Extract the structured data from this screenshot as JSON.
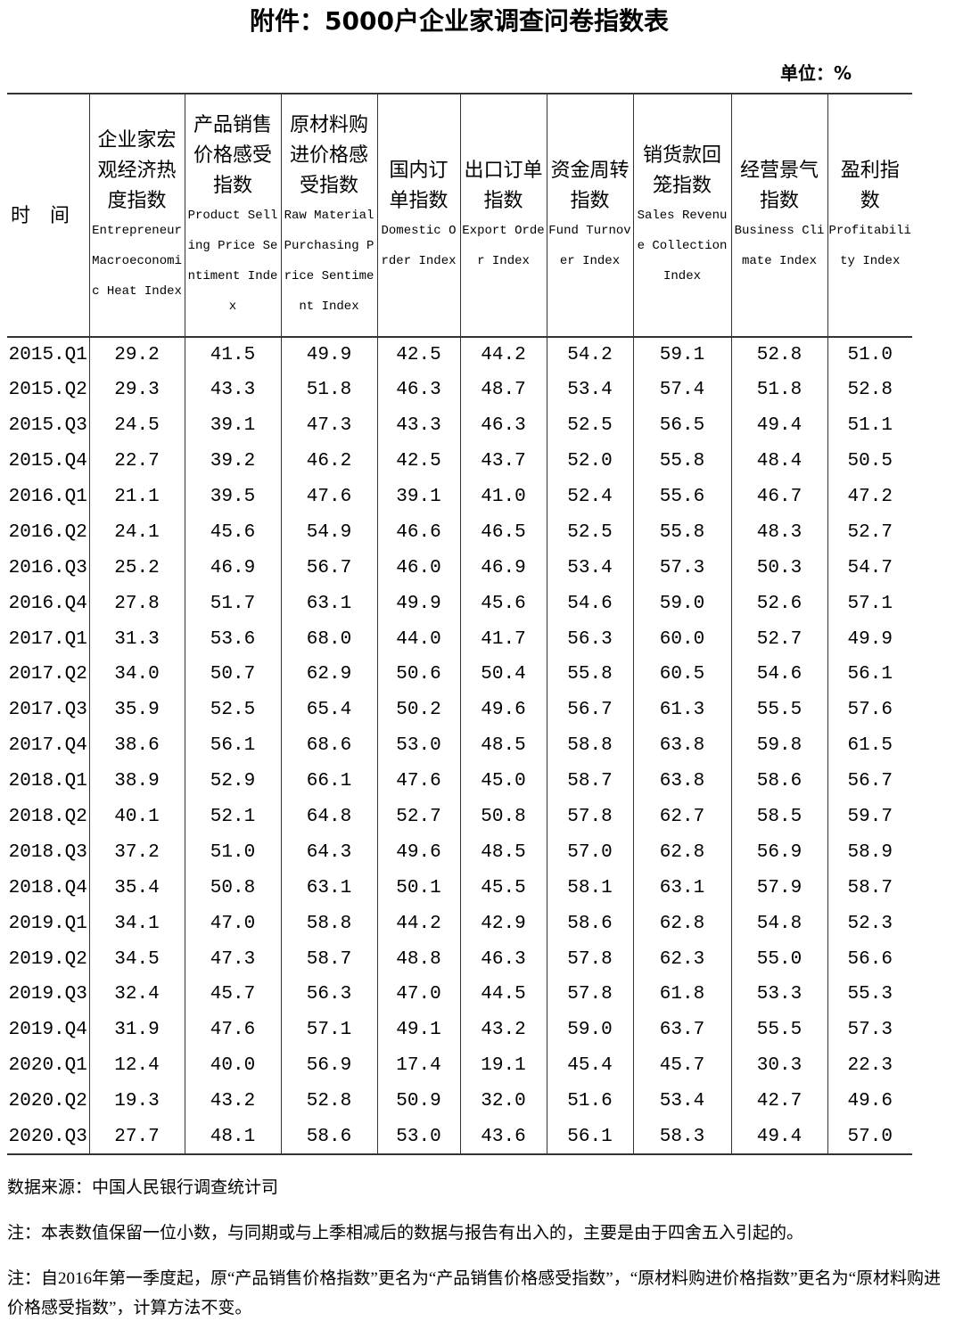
{
  "header": {
    "title": "附件：5000户企业家调查问卷指数表",
    "unit": "单位：%"
  },
  "table": {
    "columns": [
      {
        "zh": "时　间"
      },
      {
        "zh": "企业家宏观经济热度指数",
        "en": "Entrepreneur Macroeconomic Heat Index"
      },
      {
        "zh": "产品销售价格感受指数",
        "en": "Product Selling Price Sentiment Index"
      },
      {
        "zh": "原材料购进价格感受指数",
        "en": "Raw Material Purchasing Price Sentiment Index"
      },
      {
        "zh": "国内订单指数",
        "en": "Domestic Order Index"
      },
      {
        "zh": "出口订单指数",
        "en": "Export Order Index"
      },
      {
        "zh": "资金周转指数",
        "en": "Fund Turnover Index"
      },
      {
        "zh": "销货款回笼指数",
        "en": "Sales Revenue Collection Index"
      },
      {
        "zh": "经营景气指数",
        "en": "Business Climate Index"
      },
      {
        "zh": "盈利指数",
        "en": "Profitability Index"
      }
    ],
    "rows": [
      [
        "2015.Q1",
        "29.2",
        "41.5",
        "49.9",
        "42.5",
        "44.2",
        "54.2",
        "59.1",
        "52.8",
        "51.0"
      ],
      [
        "2015.Q2",
        "29.3",
        "43.3",
        "51.8",
        "46.3",
        "48.7",
        "53.4",
        "57.4",
        "51.8",
        "52.8"
      ],
      [
        "2015.Q3",
        "24.5",
        "39.1",
        "47.3",
        "43.3",
        "46.3",
        "52.5",
        "56.5",
        "49.4",
        "51.1"
      ],
      [
        "2015.Q4",
        "22.7",
        "39.2",
        "46.2",
        "42.5",
        "43.7",
        "52.0",
        "55.8",
        "48.4",
        "50.5"
      ],
      [
        "2016.Q1",
        "21.1",
        "39.5",
        "47.6",
        "39.1",
        "41.0",
        "52.4",
        "55.6",
        "46.7",
        "47.2"
      ],
      [
        "2016.Q2",
        "24.1",
        "45.6",
        "54.9",
        "46.6",
        "46.5",
        "52.5",
        "55.8",
        "48.3",
        "52.7"
      ],
      [
        "2016.Q3",
        "25.2",
        "46.9",
        "56.7",
        "46.0",
        "46.9",
        "53.4",
        "57.3",
        "50.3",
        "54.7"
      ],
      [
        "2016.Q4",
        "27.8",
        "51.7",
        "63.1",
        "49.9",
        "45.6",
        "54.6",
        "59.0",
        "52.6",
        "57.1"
      ],
      [
        "2017.Q1",
        "31.3",
        "53.6",
        "68.0",
        "44.0",
        "41.7",
        "56.3",
        "60.0",
        "52.7",
        "49.9"
      ],
      [
        "2017.Q2",
        "34.0",
        "50.7",
        "62.9",
        "50.6",
        "50.4",
        "55.8",
        "60.5",
        "54.6",
        "56.1"
      ],
      [
        "2017.Q3",
        "35.9",
        "52.5",
        "65.4",
        "50.2",
        "49.6",
        "56.7",
        "61.3",
        "55.5",
        "57.6"
      ],
      [
        "2017.Q4",
        "38.6",
        "56.1",
        "68.6",
        "53.0",
        "48.5",
        "58.8",
        "63.8",
        "59.8",
        "61.5"
      ],
      [
        "2018.Q1",
        "38.9",
        "52.9",
        "66.1",
        "47.6",
        "45.0",
        "58.7",
        "63.8",
        "58.6",
        "56.7"
      ],
      [
        "2018.Q2",
        "40.1",
        "52.1",
        "64.8",
        "52.7",
        "50.8",
        "57.8",
        "62.7",
        "58.5",
        "59.7"
      ],
      [
        "2018.Q3",
        "37.2",
        "51.0",
        "64.3",
        "49.6",
        "48.5",
        "57.0",
        "62.8",
        "56.9",
        "58.9"
      ],
      [
        "2018.Q4",
        "35.4",
        "50.8",
        "63.1",
        "50.1",
        "45.5",
        "58.1",
        "63.1",
        "57.9",
        "58.7"
      ],
      [
        "2019.Q1",
        "34.1",
        "47.0",
        "58.8",
        "44.2",
        "42.9",
        "58.6",
        "62.8",
        "54.8",
        "52.3"
      ],
      [
        "2019.Q2",
        "34.5",
        "47.3",
        "58.7",
        "48.8",
        "46.3",
        "57.8",
        "62.3",
        "55.0",
        "56.6"
      ],
      [
        "2019.Q3",
        "32.4",
        "45.7",
        "56.3",
        "47.0",
        "44.5",
        "57.8",
        "61.8",
        "53.3",
        "55.3"
      ],
      [
        "2019.Q4",
        "31.9",
        "47.6",
        "57.1",
        "49.1",
        "43.2",
        "59.0",
        "63.7",
        "55.5",
        "57.3"
      ],
      [
        "2020.Q1",
        "12.4",
        "40.0",
        "56.9",
        "17.4",
        "19.1",
        "45.4",
        "45.7",
        "30.3",
        "22.3"
      ],
      [
        "2020.Q2",
        "19.3",
        "43.2",
        "52.8",
        "50.9",
        "32.0",
        "51.6",
        "53.4",
        "42.7",
        "49.6"
      ],
      [
        "2020.Q3",
        "27.7",
        "48.1",
        "58.6",
        "53.0",
        "43.6",
        "56.1",
        "58.3",
        "49.4",
        "57.0"
      ]
    ]
  },
  "footer": {
    "source": "数据来源：中国人民银行调查统计司",
    "notes": [
      "注：本表数值保留一位小数，与同期或与上季相减后的数据与报告有出入的，主要是由于四舍五入引起的。",
      "注：自2016年第一季度起，原“产品销售价格指数”更名为“产品销售价格感受指数”，“原材料购进价格指数”更名为“原材料购进价格感受指数”，计算方法不变。"
    ]
  }
}
